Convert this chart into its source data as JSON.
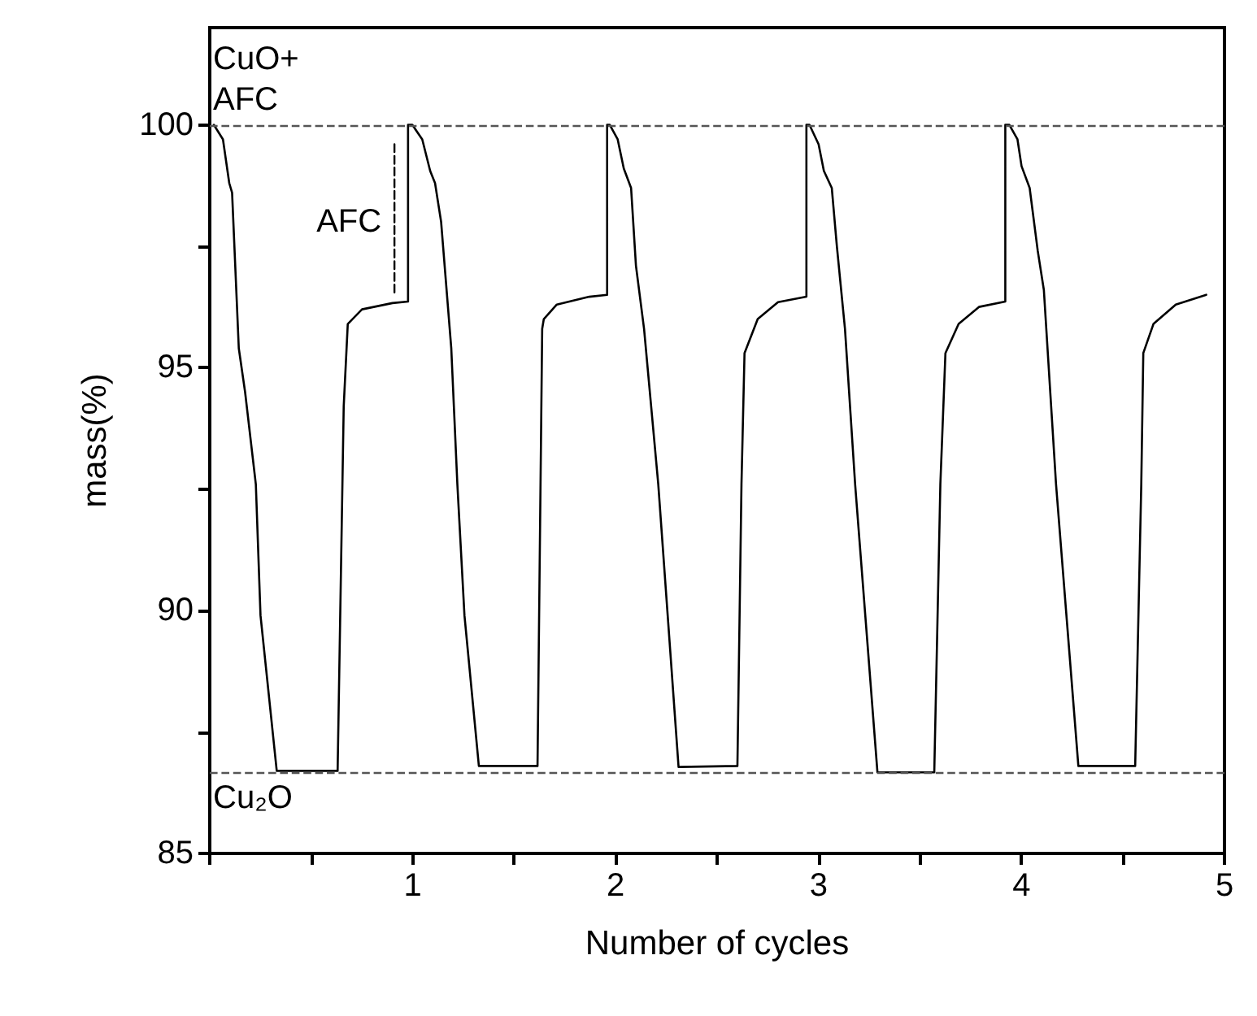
{
  "chart_data": {
    "type": "line",
    "xlabel": "Number of cycles",
    "ylabel": "mass(%)",
    "xlim": [
      0,
      5
    ],
    "ylim": [
      85,
      102
    ],
    "xticks": [
      {
        "value": 0,
        "label": null
      },
      {
        "value": 0.5,
        "label": null
      },
      1,
      {
        "value": 1.5,
        "label": null
      },
      2,
      {
        "value": 2.5,
        "label": null
      },
      3,
      {
        "value": 3.5,
        "label": null
      },
      4,
      {
        "value": 4.5,
        "label": null
      },
      5
    ],
    "yticks": [
      85,
      {
        "value": 87.5,
        "label": null
      },
      90,
      {
        "value": 92.5,
        "label": null
      },
      95,
      {
        "value": 97.5,
        "label": null
      },
      100
    ],
    "line_style": "solid",
    "series": [
      {
        "color": "#000000",
        "x": [
          0.02,
          0.065,
          0.096,
          0.11,
          0.143,
          0.174,
          0.227,
          0.25,
          0.33,
          0.63,
          0.66,
          0.68,
          0.75,
          0.9,
          0.977,
          0.977,
          0.998,
          1.047,
          1.086,
          1.11,
          1.14,
          1.19,
          1.22,
          1.255,
          1.326,
          1.615,
          1.638,
          1.646,
          1.71,
          1.87,
          1.958,
          1.958,
          1.971,
          2.01,
          2.04,
          2.076,
          2.1,
          2.14,
          2.21,
          2.31,
          2.6,
          2.62,
          2.635,
          2.7,
          2.8,
          2.94,
          2.94,
          2.955,
          3.0,
          3.026,
          3.065,
          3.09,
          3.13,
          3.18,
          3.29,
          3.57,
          3.6,
          3.625,
          3.69,
          3.79,
          3.92,
          3.92,
          3.94,
          3.98,
          4.0,
          4.04,
          4.08,
          4.11,
          4.17,
          4.28,
          4.56,
          4.59,
          4.6,
          4.65,
          4.76,
          4.91
        ],
        "values": [
          100,
          99.7,
          98.8,
          98.6,
          95.4,
          94.5,
          92.6,
          89.9,
          86.7,
          86.7,
          94.2,
          95.9,
          96.2,
          96.33,
          96.36,
          100,
          100,
          99.7,
          99.05,
          98.8,
          98,
          95.4,
          92.6,
          89.9,
          86.8,
          86.8,
          95.8,
          96,
          96.3,
          96.46,
          96.5,
          100,
          100,
          99.7,
          99.1,
          98.7,
          97.1,
          95.8,
          92.6,
          86.78,
          86.8,
          92.6,
          95.3,
          96,
          96.35,
          96.46,
          100,
          100,
          99.6,
          99.05,
          98.7,
          97.5,
          95.8,
          92.6,
          86.67,
          86.67,
          92.6,
          95.3,
          95.9,
          96.25,
          96.36,
          100,
          100,
          99.7,
          99.15,
          98.7,
          97.4,
          96.6,
          92.6,
          86.8,
          86.8,
          92.6,
          95.3,
          95.9,
          96.3,
          96.5
        ]
      },
      {
        "type": "line",
        "color": "#000000",
        "line_style": "dashed",
        "x": [
          0.91,
          0.91
        ],
        "values": [
          99.6,
          96.5
        ]
      }
    ],
    "ref_lines": [
      {
        "axis": "y",
        "value": 100,
        "label": "CuO+\nAFC",
        "color": "#555555",
        "line_style": "dashed"
      },
      {
        "axis": "y",
        "value": 86.65,
        "label": "Cu₂O",
        "color": "#555555",
        "line_style": "dashed"
      }
    ],
    "annotations": [
      {
        "text": "AFC",
        "x": 0.91,
        "y": 98
      }
    ]
  }
}
